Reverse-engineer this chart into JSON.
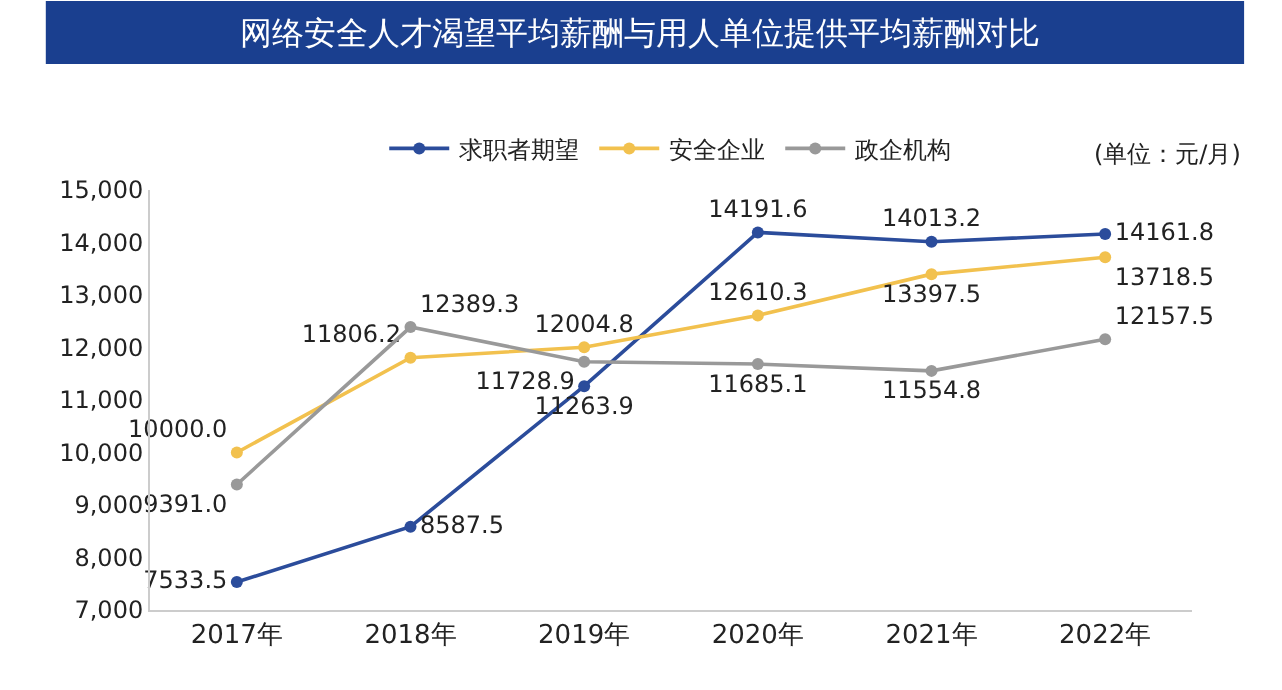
{
  "chart_data": {
    "type": "line",
    "title": "网络安全人才渴望平均薪酬与用人单位提供平均薪酬对比",
    "annotations": [
      "(单位：元/月)"
    ],
    "categories": [
      "2017年",
      "2018年",
      "2019年",
      "2020年",
      "2021年",
      "2022年"
    ],
    "series": [
      {
        "name": "求职者期望",
        "color": "#2b4c9b",
        "values": [
          7533.5,
          8587.5,
          11263.9,
          14191.6,
          14013.2,
          14161.8
        ],
        "value_labels": [
          "7533.5",
          "8587.5",
          "11263.9",
          "14191.6",
          "14013.2",
          "14161.8"
        ]
      },
      {
        "name": "安全企业",
        "color": "#f2c14e",
        "values": [
          10000.0,
          11806.2,
          12004.8,
          12610.3,
          13397.5,
          13718.5
        ],
        "value_labels": [
          "10000.0",
          "11806.2",
          "12004.8",
          "12610.3",
          "13397.5",
          "13718.5"
        ]
      },
      {
        "name": "政企机构",
        "color": "#999999",
        "values": [
          9391.0,
          12389.3,
          11728.9,
          11685.1,
          11554.8,
          12157.5
        ],
        "value_labels": [
          "9391.0",
          "12389.3",
          "11728.9",
          "11685.1",
          "11554.8",
          "12157.5"
        ]
      }
    ],
    "ylim": [
      7000,
      15000
    ],
    "yticks": [
      {
        "value": 7000,
        "label": "7,000"
      },
      {
        "value": 8000,
        "label": "8,000"
      },
      {
        "value": 9000,
        "label": "9,000"
      },
      {
        "value": 10000,
        "label": "10,000"
      },
      {
        "value": 11000,
        "label": "11,000"
      },
      {
        "value": 12000,
        "label": "12,000"
      },
      {
        "value": 13000,
        "label": "13,000"
      },
      {
        "value": 14000,
        "label": "14,000"
      },
      {
        "value": 15000,
        "label": "15,000"
      }
    ],
    "grid": false,
    "legend": "top",
    "marker": "circle",
    "line_style": "solid"
  }
}
